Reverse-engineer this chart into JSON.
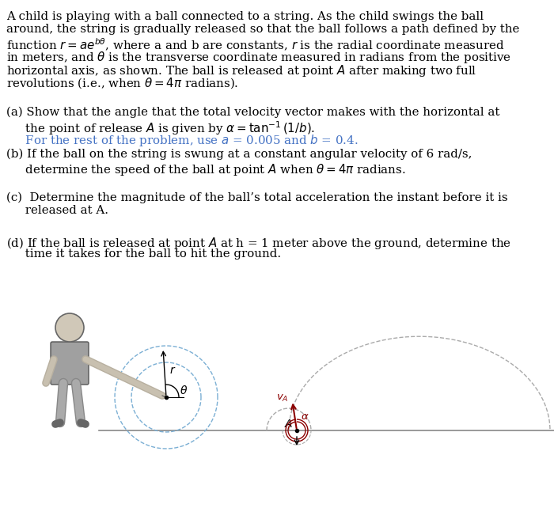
{
  "bg_color": "#ffffff",
  "text_color": "#000000",
  "blue_color": "#4472C4",
  "red_color": "#8B0000",
  "spiral_color": "#7bafd4",
  "ground_color": "#888888",
  "fs": 10.8,
  "b_const": 0.4,
  "para_lines": [
    "A child is playing with a ball connected to a string. As the child swings the ball",
    "around, the string is gradually released so that the ball follows a path defined by the",
    "function $r = ae^{b\\theta}$, where a and b are constants, $r$ is the radial coordinate measured",
    "in meters, and $\\theta$ is the transverse coordinate measured in radians from the positive",
    "horizontal axis, as shown. The ball is released at point $A$ after making two full",
    "revolutions (i.e., when $\\theta = 4\\pi$ radians)."
  ],
  "part_a_1": "(a) Show that the angle that the total velocity vector makes with the horizontal at",
  "part_a_2": "     the point of release $A$ is given by $\\alpha = \\tan^{-1}(1/b)$.",
  "part_a_blue": "     For the rest of the problem, use $a$ = 0.005 and $b$ = 0.4.",
  "part_b_1": "(b) If the ball on the string is swung at a constant angular velocity of 6 rad/s,",
  "part_b_2": "     determine the speed of the ball at point $A$ when $\\theta = 4\\pi$ radians.",
  "part_c_1": "(c)  Determine the magnitude of the ball’s total acceleration the instant before it is",
  "part_c_2": "     released at A.",
  "part_d_1": "(d) If the ball is released at point $A$ at h = 1 meter above the ground, determine the",
  "part_d_2": "     time it takes for the ball to hit the ground."
}
